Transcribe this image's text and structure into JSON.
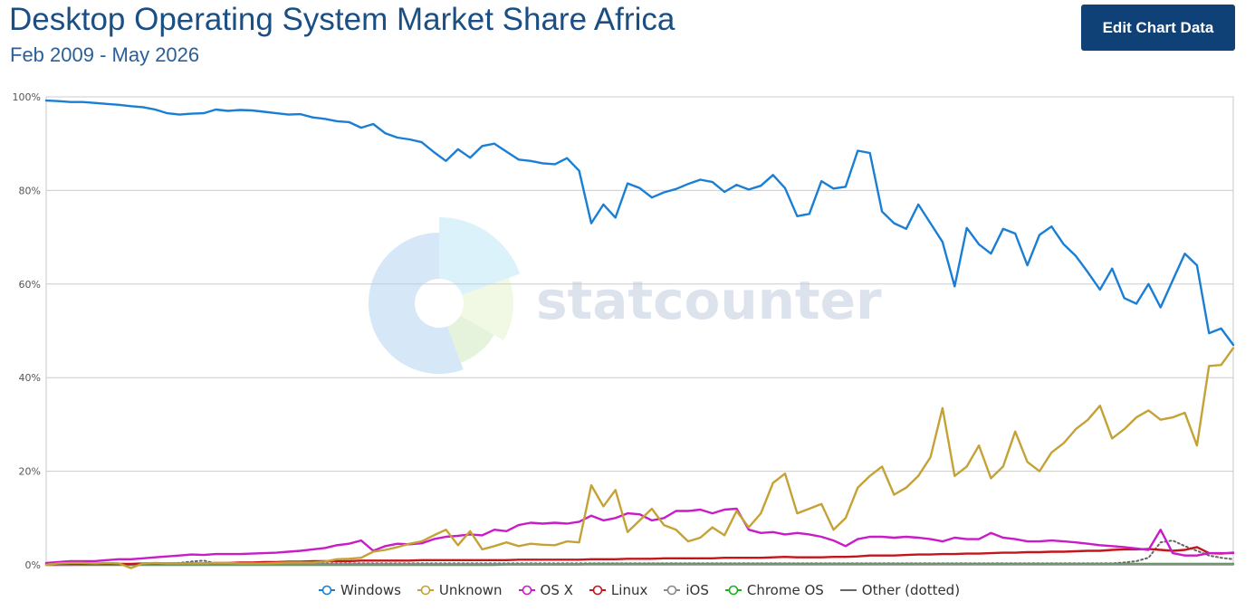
{
  "header": {
    "title": "Desktop Operating System Market Share Africa",
    "subtitle": "Feb 2009 - May 2026",
    "edit_button_label": "Edit Chart Data"
  },
  "watermark": {
    "brand": "statcounter",
    "icon": "statcounter-logo-icon"
  },
  "chart_data": {
    "type": "line",
    "title": "Desktop Operating System Market Share Africa",
    "subtitle": "Feb 2009 - May 2026",
    "x_range": [
      "Feb 2009",
      "May 2026"
    ],
    "ylim": [
      0,
      100
    ],
    "yticks": [
      0,
      20,
      40,
      60,
      80,
      100
    ],
    "ytick_labels": [
      "0%",
      "20%",
      "40%",
      "60%",
      "80%",
      "100%"
    ],
    "grid": true,
    "legend_position": "bottom-center",
    "series": [
      {
        "name": "Windows",
        "color": "#1a7fd4",
        "style": "solid",
        "marker": "circle-open",
        "values": [
          99.2,
          99.1,
          98.9,
          98.9,
          98.7,
          98.5,
          98.3,
          98.0,
          97.8,
          97.3,
          96.5,
          96.2,
          96.4,
          96.5,
          97.3,
          97.0,
          97.2,
          97.1,
          96.8,
          96.5,
          96.2,
          96.3,
          95.6,
          95.3,
          94.8,
          94.6,
          93.4,
          94.2,
          92.2,
          91.3,
          90.9,
          90.3,
          88.2,
          86.3,
          88.8,
          87.0,
          89.5,
          90.0,
          88.3,
          86.6,
          86.3,
          85.8,
          85.6,
          86.9,
          84.2,
          73.0,
          77.0,
          74.2,
          81.5,
          80.5,
          78.5,
          79.6,
          80.3,
          81.4,
          82.3,
          81.8,
          79.7,
          81.2,
          80.2,
          81.0,
          83.3,
          80.5,
          74.5,
          75.0,
          82.0,
          80.4,
          80.8,
          88.5,
          88.0,
          75.5,
          73.0,
          71.8,
          77.0,
          73.0,
          69.0,
          59.5,
          72.0,
          68.5,
          66.5,
          71.8,
          70.8,
          64.0,
          70.5,
          72.3,
          68.5,
          66.0,
          62.5,
          58.8,
          63.3,
          57.0,
          55.8,
          60.0,
          55.0,
          60.8,
          66.5,
          64.0,
          49.5,
          50.5,
          47.0
        ]
      },
      {
        "name": "Unknown",
        "color": "#c5a236",
        "style": "solid",
        "marker": "circle-open",
        "values": [
          0.0,
          0.3,
          0.4,
          0.4,
          0.3,
          0.4,
          0.3,
          -0.7,
          0.3,
          0.4,
          0.3,
          0.3,
          0.3,
          0.3,
          0.4,
          0.4,
          0.3,
          0.3,
          0.3,
          0.4,
          0.5,
          0.5,
          0.5,
          0.7,
          1.2,
          1.3,
          1.5,
          2.8,
          3.2,
          3.8,
          4.5,
          5.0,
          6.3,
          7.5,
          4.2,
          7.2,
          3.3,
          4.0,
          4.8,
          4.0,
          4.5,
          4.3,
          4.2,
          5.0,
          4.8,
          17.0,
          12.5,
          16.0,
          7.0,
          9.5,
          12.0,
          8.5,
          7.5,
          5.0,
          5.8,
          8.0,
          6.3,
          11.5,
          8.0,
          11.0,
          17.5,
          19.5,
          11.0,
          12.0,
          13.0,
          7.5,
          10.0,
          16.5,
          19.0,
          21.0,
          15.0,
          16.5,
          19.0,
          23.0,
          33.5,
          19.0,
          21.0,
          25.5,
          18.5,
          21.0,
          28.5,
          22.0,
          20.0,
          24.0,
          26.0,
          29.0,
          31.0,
          34.0,
          27.0,
          29.0,
          31.5,
          33.0,
          31.0,
          31.5,
          32.5,
          25.5,
          42.5,
          42.7,
          46.3
        ]
      },
      {
        "name": "OS X",
        "color": "#c91bc8",
        "style": "solid",
        "marker": "circle-open",
        "values": [
          0.4,
          0.6,
          0.8,
          0.8,
          0.8,
          1.0,
          1.2,
          1.2,
          1.4,
          1.6,
          1.8,
          2.0,
          2.2,
          2.1,
          2.3,
          2.3,
          2.3,
          2.4,
          2.5,
          2.6,
          2.8,
          3.0,
          3.3,
          3.6,
          4.2,
          4.5,
          5.2,
          3.0,
          4.0,
          4.5,
          4.4,
          4.6,
          5.5,
          6.0,
          6.2,
          6.5,
          6.3,
          7.5,
          7.2,
          8.5,
          9.0,
          8.8,
          9.0,
          8.8,
          9.2,
          10.5,
          9.5,
          10.0,
          11.0,
          10.8,
          9.5,
          10.0,
          11.5,
          11.5,
          11.8,
          11.0,
          11.8,
          12.0,
          7.5,
          6.8,
          7.0,
          6.5,
          6.8,
          6.5,
          6.0,
          5.2,
          4.0,
          5.5,
          6.0,
          6.0,
          5.8,
          6.0,
          5.8,
          5.5,
          5.0,
          5.8,
          5.5,
          5.5,
          6.8,
          5.8,
          5.5,
          5.0,
          5.0,
          5.2,
          5.0,
          4.8,
          4.5,
          4.2,
          4.0,
          3.8,
          3.5,
          3.2,
          7.5,
          2.5,
          2.0,
          2.0,
          2.5,
          2.5,
          2.5
        ]
      },
      {
        "name": "Linux",
        "color": "#c5151c",
        "style": "solid",
        "marker": "circle-open",
        "values": [
          0.1,
          0.2,
          0.2,
          0.2,
          0.2,
          0.2,
          0.2,
          0.2,
          0.3,
          0.3,
          0.3,
          0.3,
          0.3,
          0.3,
          0.4,
          0.4,
          0.5,
          0.5,
          0.6,
          0.6,
          0.7,
          0.7,
          0.8,
          0.8,
          0.8,
          0.8,
          0.9,
          0.9,
          0.9,
          0.9,
          0.9,
          1.0,
          1.0,
          1.0,
          1.0,
          1.0,
          1.0,
          1.0,
          1.0,
          1.1,
          1.1,
          1.1,
          1.1,
          1.1,
          1.1,
          1.2,
          1.2,
          1.2,
          1.3,
          1.3,
          1.3,
          1.4,
          1.4,
          1.4,
          1.4,
          1.4,
          1.5,
          1.5,
          1.5,
          1.5,
          1.6,
          1.7,
          1.6,
          1.6,
          1.6,
          1.7,
          1.7,
          1.8,
          2.0,
          2.0,
          2.0,
          2.1,
          2.2,
          2.2,
          2.3,
          2.3,
          2.4,
          2.4,
          2.5,
          2.6,
          2.6,
          2.7,
          2.7,
          2.8,
          2.8,
          2.9,
          3.0,
          3.0,
          3.2,
          3.3,
          3.3,
          3.4,
          3.2,
          3.0,
          3.2,
          3.8,
          2.5,
          2.4,
          2.6
        ]
      },
      {
        "name": "iOS",
        "color": "#888888",
        "style": "solid",
        "marker": "circle-open",
        "values": [
          0.0,
          0.0,
          0.0,
          0.1,
          0.1,
          0.1,
          0.1,
          0.1,
          0.1,
          0.1,
          0.1,
          0.1,
          0.1,
          0.1,
          0.1,
          0.1,
          0.1,
          0.1,
          0.1,
          0.1,
          0.1,
          0.1,
          0.1,
          0.1,
          0.1,
          0.1,
          0.1,
          0.1,
          0.1,
          0.1,
          0.1,
          0.1,
          0.1,
          0.1,
          0.1,
          0.1,
          0.1,
          0.1,
          0.1,
          0.1,
          0.1,
          0.1,
          0.1,
          0.1,
          0.1,
          0.1,
          0.1,
          0.1,
          0.1,
          0.1,
          0.1,
          0.1,
          0.1,
          0.1,
          0.1,
          0.1,
          0.1,
          0.1,
          0.1,
          0.1,
          0.1,
          0.1,
          0.1,
          0.1,
          0.1,
          0.1,
          0.1,
          0.1,
          0.1,
          0.1,
          0.1,
          0.1,
          0.1,
          0.1,
          0.1,
          0.1,
          0.1,
          0.1,
          0.1,
          0.1,
          0.1,
          0.1,
          0.1,
          0.1,
          0.1,
          0.1,
          0.1,
          0.1,
          0.1,
          0.1,
          0.1,
          0.1,
          0.1,
          0.1,
          0.1,
          0.1,
          0.1,
          0.1,
          0.1
        ]
      },
      {
        "name": "Chrome OS",
        "color": "#19b019",
        "style": "solid",
        "marker": "circle-open",
        "values": [
          0.0,
          0.0,
          0.0,
          0.0,
          0.0,
          0.0,
          0.0,
          0.0,
          0.0,
          0.0,
          0.0,
          0.0,
          0.0,
          0.0,
          0.0,
          0.0,
          0.0,
          0.0,
          0.0,
          0.0,
          0.0,
          0.0,
          0.0,
          0.0,
          0.0,
          0.0,
          0.0,
          0.0,
          0.0,
          0.0,
          0.0,
          0.0,
          0.0,
          0.0,
          0.0,
          0.0,
          0.0,
          0.0,
          0.1,
          0.1,
          0.1,
          0.1,
          0.1,
          0.1,
          0.1,
          0.2,
          0.2,
          0.2,
          0.2,
          0.2,
          0.2,
          0.2,
          0.2,
          0.2,
          0.2,
          0.2,
          0.2,
          0.2,
          0.2,
          0.2,
          0.2,
          0.2,
          0.2,
          0.2,
          0.2,
          0.2,
          0.2,
          0.2,
          0.2,
          0.2,
          0.2,
          0.2,
          0.2,
          0.2,
          0.2,
          0.2,
          0.2,
          0.2,
          0.2,
          0.2,
          0.2,
          0.2,
          0.2,
          0.2,
          0.2,
          0.2,
          0.2,
          0.2,
          0.2,
          0.2,
          0.2,
          0.2,
          0.2,
          0.2,
          0.2,
          0.2,
          0.2,
          0.2,
          0.2
        ]
      },
      {
        "name": "Other (dotted)",
        "color": "#666666",
        "style": "dotted",
        "marker": "line",
        "values": [
          0.2,
          0.2,
          0.2,
          0.2,
          0.2,
          0.3,
          0.2,
          0.2,
          0.2,
          0.3,
          0.3,
          0.4,
          0.7,
          0.9,
          0.3,
          0.3,
          0.3,
          0.3,
          0.3,
          0.3,
          0.3,
          0.3,
          0.3,
          0.3,
          0.3,
          0.3,
          0.3,
          0.3,
          0.3,
          0.3,
          0.3,
          0.3,
          0.3,
          0.3,
          0.3,
          0.3,
          0.3,
          0.3,
          0.3,
          0.3,
          0.3,
          0.3,
          0.3,
          0.3,
          0.3,
          0.3,
          0.3,
          0.3,
          0.3,
          0.3,
          0.3,
          0.3,
          0.3,
          0.3,
          0.3,
          0.3,
          0.3,
          0.3,
          0.3,
          0.3,
          0.3,
          0.3,
          0.3,
          0.3,
          0.3,
          0.3,
          0.3,
          0.3,
          0.3,
          0.3,
          0.3,
          0.3,
          0.3,
          0.3,
          0.3,
          0.3,
          0.3,
          0.3,
          0.3,
          0.3,
          0.3,
          0.3,
          0.3,
          0.3,
          0.3,
          0.3,
          0.3,
          0.3,
          0.3,
          0.5,
          0.8,
          1.5,
          4.8,
          5.2,
          4.0,
          3.0,
          2.0,
          1.5,
          1.2
        ]
      }
    ]
  }
}
